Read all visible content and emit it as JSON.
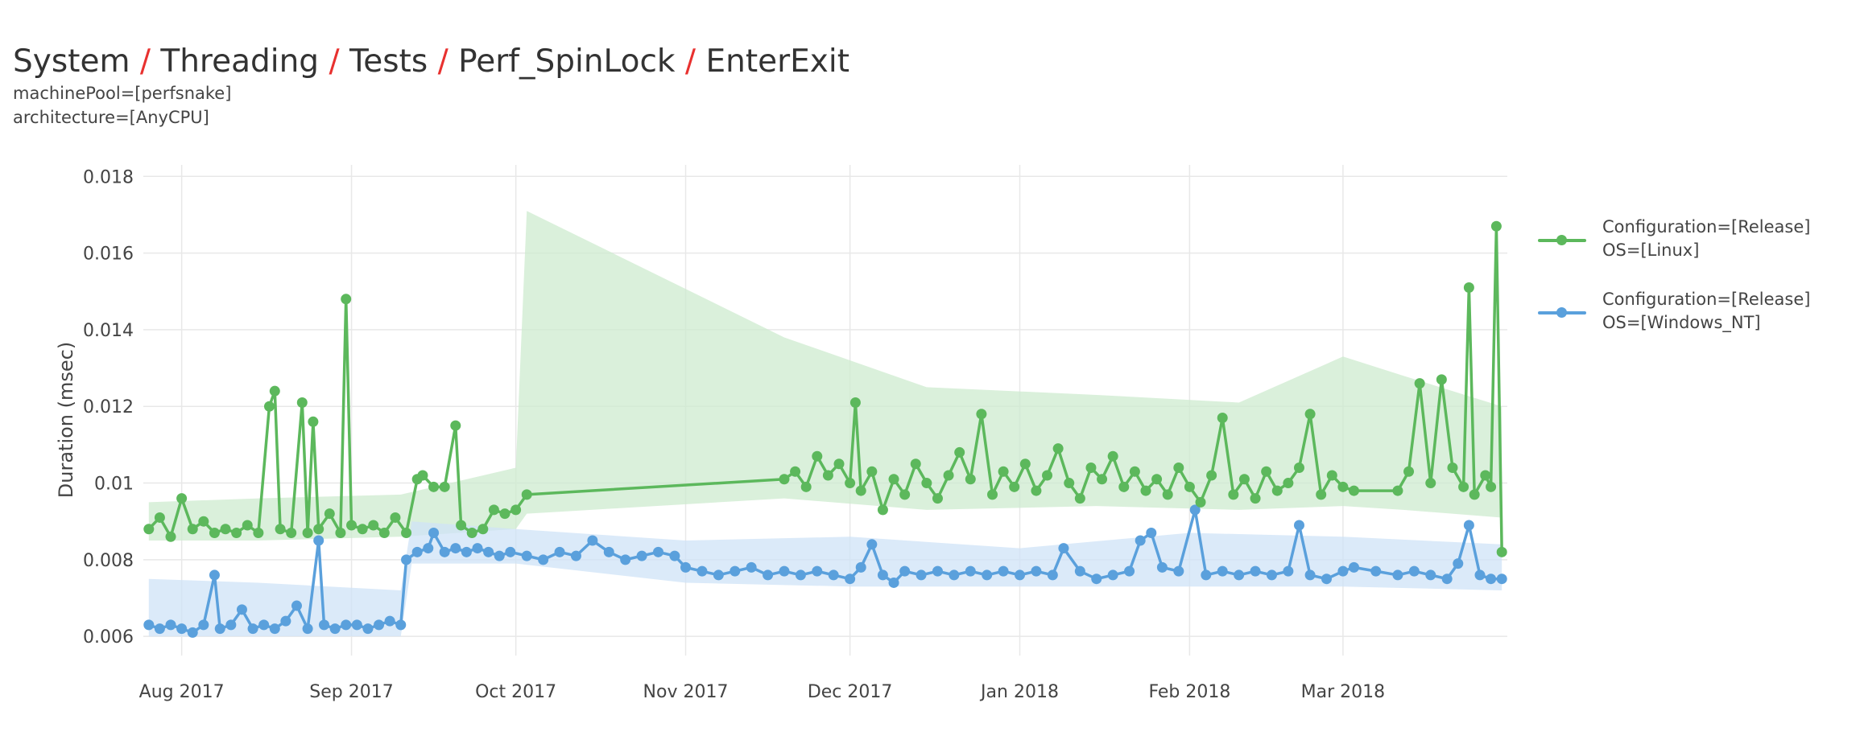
{
  "title": {
    "crumbs": [
      "System",
      "Threading",
      "Tests",
      "Perf_SpinLock",
      "EnterExit"
    ],
    "separator": "/"
  },
  "subtitle": [
    "machinePool=[perfsnake]",
    "architecture=[AnyCPU]"
  ],
  "colors": {
    "linux": "#5cb85c",
    "windows": "#5aa0dc",
    "linux_band": "#cdebcf",
    "windows_band": "#cfe3f7",
    "grid": "#e8e8e8",
    "separator": "#e8312f"
  },
  "chart_data": {
    "type": "line",
    "xlabel": "",
    "ylabel": "Duration (msec)",
    "x_range": [
      "2017-07-25",
      "2018-03-31"
    ],
    "ylim": [
      0.0055,
      0.0183
    ],
    "yticks": [
      0.006,
      0.008,
      0.01,
      0.012,
      0.014,
      0.016,
      0.018
    ],
    "ytick_labels": [
      "0.006",
      "0.008",
      "0.01",
      "0.012",
      "0.014",
      "0.016",
      "0.018"
    ],
    "xticks": [
      "2017-08-01",
      "2017-09-01",
      "2017-10-01",
      "2017-11-01",
      "2017-12-01",
      "2018-01-01",
      "2018-02-01",
      "2018-03-01"
    ],
    "xtick_labels": [
      "Aug 2017",
      "Sep 2017",
      "Oct 2017",
      "Nov 2017",
      "Dec 2017",
      "Jan 2018",
      "Feb 2018",
      "Mar 2018"
    ],
    "grid": true,
    "legend_position": "right",
    "series": [
      {
        "name": "Configuration=[Release]\nOS=[Linux]",
        "color": "#5cb85c",
        "band_color": "#cdebcf",
        "points": [
          [
            "2017-07-26",
            0.0088
          ],
          [
            "2017-07-28",
            0.0091
          ],
          [
            "2017-07-30",
            0.0086
          ],
          [
            "2017-08-01",
            0.0096
          ],
          [
            "2017-08-03",
            0.0088
          ],
          [
            "2017-08-05",
            0.009
          ],
          [
            "2017-08-07",
            0.0087
          ],
          [
            "2017-08-09",
            0.0088
          ],
          [
            "2017-08-11",
            0.0087
          ],
          [
            "2017-08-13",
            0.0089
          ],
          [
            "2017-08-15",
            0.0087
          ],
          [
            "2017-08-17",
            0.012
          ],
          [
            "2017-08-18",
            0.0124
          ],
          [
            "2017-08-19",
            0.0088
          ],
          [
            "2017-08-21",
            0.0087
          ],
          [
            "2017-08-23",
            0.0121
          ],
          [
            "2017-08-24",
            0.0087
          ],
          [
            "2017-08-25",
            0.0116
          ],
          [
            "2017-08-26",
            0.0088
          ],
          [
            "2017-08-28",
            0.0092
          ],
          [
            "2017-08-30",
            0.0087
          ],
          [
            "2017-08-31",
            0.0148
          ],
          [
            "2017-09-01",
            0.0089
          ],
          [
            "2017-09-03",
            0.0088
          ],
          [
            "2017-09-05",
            0.0089
          ],
          [
            "2017-09-07",
            0.0087
          ],
          [
            "2017-09-09",
            0.0091
          ],
          [
            "2017-09-11",
            0.0087
          ],
          [
            "2017-09-13",
            0.0101
          ],
          [
            "2017-09-14",
            0.0102
          ],
          [
            "2017-09-16",
            0.0099
          ],
          [
            "2017-09-18",
            0.0099
          ],
          [
            "2017-09-20",
            0.0115
          ],
          [
            "2017-09-21",
            0.0089
          ],
          [
            "2017-09-23",
            0.0087
          ],
          [
            "2017-09-25",
            0.0088
          ],
          [
            "2017-09-27",
            0.0093
          ],
          [
            "2017-09-29",
            0.0092
          ],
          [
            "2017-10-01",
            0.0093
          ],
          [
            "2017-10-03",
            0.0097
          ],
          [
            "2017-11-19",
            0.0101
          ],
          [
            "2017-11-21",
            0.0103
          ],
          [
            "2017-11-23",
            0.0099
          ],
          [
            "2017-11-25",
            0.0107
          ],
          [
            "2017-11-27",
            0.0102
          ],
          [
            "2017-11-29",
            0.0105
          ],
          [
            "2017-12-01",
            0.01
          ],
          [
            "2017-12-02",
            0.0121
          ],
          [
            "2017-12-03",
            0.0098
          ],
          [
            "2017-12-05",
            0.0103
          ],
          [
            "2017-12-07",
            0.0093
          ],
          [
            "2017-12-09",
            0.0101
          ],
          [
            "2017-12-11",
            0.0097
          ],
          [
            "2017-12-13",
            0.0105
          ],
          [
            "2017-12-15",
            0.01
          ],
          [
            "2017-12-17",
            0.0096
          ],
          [
            "2017-12-19",
            0.0102
          ],
          [
            "2017-12-21",
            0.0108
          ],
          [
            "2017-12-23",
            0.0101
          ],
          [
            "2017-12-25",
            0.0118
          ],
          [
            "2017-12-27",
            0.0097
          ],
          [
            "2017-12-29",
            0.0103
          ],
          [
            "2017-12-31",
            0.0099
          ],
          [
            "2018-01-02",
            0.0105
          ],
          [
            "2018-01-04",
            0.0098
          ],
          [
            "2018-01-06",
            0.0102
          ],
          [
            "2018-01-08",
            0.0109
          ],
          [
            "2018-01-10",
            0.01
          ],
          [
            "2018-01-12",
            0.0096
          ],
          [
            "2018-01-14",
            0.0104
          ],
          [
            "2018-01-16",
            0.0101
          ],
          [
            "2018-01-18",
            0.0107
          ],
          [
            "2018-01-20",
            0.0099
          ],
          [
            "2018-01-22",
            0.0103
          ],
          [
            "2018-01-24",
            0.0098
          ],
          [
            "2018-01-26",
            0.0101
          ],
          [
            "2018-01-28",
            0.0097
          ],
          [
            "2018-01-30",
            0.0104
          ],
          [
            "2018-02-01",
            0.0099
          ],
          [
            "2018-02-03",
            0.0095
          ],
          [
            "2018-02-05",
            0.0102
          ],
          [
            "2018-02-07",
            0.0117
          ],
          [
            "2018-02-09",
            0.0097
          ],
          [
            "2018-02-11",
            0.0101
          ],
          [
            "2018-02-13",
            0.0096
          ],
          [
            "2018-02-15",
            0.0103
          ],
          [
            "2018-02-17",
            0.0098
          ],
          [
            "2018-02-19",
            0.01
          ],
          [
            "2018-02-21",
            0.0104
          ],
          [
            "2018-02-23",
            0.0118
          ],
          [
            "2018-02-25",
            0.0097
          ],
          [
            "2018-02-27",
            0.0102
          ],
          [
            "2018-03-01",
            0.0099
          ],
          [
            "2018-03-03",
            0.0098
          ],
          [
            "2018-03-11",
            0.0098
          ],
          [
            "2018-03-13",
            0.0103
          ],
          [
            "2018-03-15",
            0.0126
          ],
          [
            "2018-03-17",
            0.01
          ],
          [
            "2018-03-19",
            0.0127
          ],
          [
            "2018-03-21",
            0.0104
          ],
          [
            "2018-03-23",
            0.0099
          ],
          [
            "2018-03-24",
            0.0151
          ],
          [
            "2018-03-25",
            0.0097
          ],
          [
            "2018-03-27",
            0.0102
          ],
          [
            "2018-03-28",
            0.0099
          ],
          [
            "2018-03-29",
            0.0167
          ],
          [
            "2018-03-30",
            0.0082
          ]
        ],
        "band_upper": [
          [
            "2017-07-26",
            0.0095
          ],
          [
            "2017-08-15",
            0.0096
          ],
          [
            "2017-09-10",
            0.0097
          ],
          [
            "2017-10-01",
            0.0104
          ],
          [
            "2017-10-03",
            0.0171
          ],
          [
            "2017-11-19",
            0.0138
          ],
          [
            "2017-12-15",
            0.0125
          ],
          [
            "2018-01-15",
            0.0123
          ],
          [
            "2018-02-10",
            0.0121
          ],
          [
            "2018-03-01",
            0.0133
          ],
          [
            "2018-03-12",
            0.0128
          ],
          [
            "2018-03-30",
            0.012
          ]
        ],
        "band_lower": [
          [
            "2017-07-26",
            0.0085
          ],
          [
            "2017-08-15",
            0.0085
          ],
          [
            "2017-09-10",
            0.0086
          ],
          [
            "2017-10-01",
            0.0088
          ],
          [
            "2017-10-03",
            0.0092
          ],
          [
            "2017-11-19",
            0.0096
          ],
          [
            "2017-12-15",
            0.0093
          ],
          [
            "2018-01-15",
            0.0094
          ],
          [
            "2018-02-10",
            0.0093
          ],
          [
            "2018-03-01",
            0.0094
          ],
          [
            "2018-03-12",
            0.0093
          ],
          [
            "2018-03-30",
            0.0091
          ]
        ]
      },
      {
        "name": "Configuration=[Release]\nOS=[Windows_NT]",
        "color": "#5aa0dc",
        "band_color": "#cfe3f7",
        "points": [
          [
            "2017-07-26",
            0.0063
          ],
          [
            "2017-07-28",
            0.0062
          ],
          [
            "2017-07-30",
            0.0063
          ],
          [
            "2017-08-01",
            0.0062
          ],
          [
            "2017-08-03",
            0.0061
          ],
          [
            "2017-08-05",
            0.0063
          ],
          [
            "2017-08-07",
            0.0076
          ],
          [
            "2017-08-08",
            0.0062
          ],
          [
            "2017-08-10",
            0.0063
          ],
          [
            "2017-08-12",
            0.0067
          ],
          [
            "2017-08-14",
            0.0062
          ],
          [
            "2017-08-16",
            0.0063
          ],
          [
            "2017-08-18",
            0.0062
          ],
          [
            "2017-08-20",
            0.0064
          ],
          [
            "2017-08-22",
            0.0068
          ],
          [
            "2017-08-24",
            0.0062
          ],
          [
            "2017-08-26",
            0.0085
          ],
          [
            "2017-08-27",
            0.0063
          ],
          [
            "2017-08-29",
            0.0062
          ],
          [
            "2017-08-31",
            0.0063
          ],
          [
            "2017-09-02",
            0.0063
          ],
          [
            "2017-09-04",
            0.0062
          ],
          [
            "2017-09-06",
            0.0063
          ],
          [
            "2017-09-08",
            0.0064
          ],
          [
            "2017-09-10",
            0.0063
          ],
          [
            "2017-09-11",
            0.008
          ],
          [
            "2017-09-13",
            0.0082
          ],
          [
            "2017-09-15",
            0.0083
          ],
          [
            "2017-09-16",
            0.0087
          ],
          [
            "2017-09-18",
            0.0082
          ],
          [
            "2017-09-20",
            0.0083
          ],
          [
            "2017-09-22",
            0.0082
          ],
          [
            "2017-09-24",
            0.0083
          ],
          [
            "2017-09-26",
            0.0082
          ],
          [
            "2017-09-28",
            0.0081
          ],
          [
            "2017-09-30",
            0.0082
          ],
          [
            "2017-10-03",
            0.0081
          ],
          [
            "2017-10-06",
            0.008
          ],
          [
            "2017-10-09",
            0.0082
          ],
          [
            "2017-10-12",
            0.0081
          ],
          [
            "2017-10-15",
            0.0085
          ],
          [
            "2017-10-18",
            0.0082
          ],
          [
            "2017-10-21",
            0.008
          ],
          [
            "2017-10-24",
            0.0081
          ],
          [
            "2017-10-27",
            0.0082
          ],
          [
            "2017-10-30",
            0.0081
          ],
          [
            "2017-11-01",
            0.0078
          ],
          [
            "2017-11-04",
            0.0077
          ],
          [
            "2017-11-07",
            0.0076
          ],
          [
            "2017-11-10",
            0.0077
          ],
          [
            "2017-11-13",
            0.0078
          ],
          [
            "2017-11-16",
            0.0076
          ],
          [
            "2017-11-19",
            0.0077
          ],
          [
            "2017-11-22",
            0.0076
          ],
          [
            "2017-11-25",
            0.0077
          ],
          [
            "2017-11-28",
            0.0076
          ],
          [
            "2017-12-01",
            0.0075
          ],
          [
            "2017-12-03",
            0.0078
          ],
          [
            "2017-12-05",
            0.0084
          ],
          [
            "2017-12-07",
            0.0076
          ],
          [
            "2017-12-09",
            0.0074
          ],
          [
            "2017-12-11",
            0.0077
          ],
          [
            "2017-12-14",
            0.0076
          ],
          [
            "2017-12-17",
            0.0077
          ],
          [
            "2017-12-20",
            0.0076
          ],
          [
            "2017-12-23",
            0.0077
          ],
          [
            "2017-12-26",
            0.0076
          ],
          [
            "2017-12-29",
            0.0077
          ],
          [
            "2018-01-01",
            0.0076
          ],
          [
            "2018-01-04",
            0.0077
          ],
          [
            "2018-01-07",
            0.0076
          ],
          [
            "2018-01-09",
            0.0083
          ],
          [
            "2018-01-12",
            0.0077
          ],
          [
            "2018-01-15",
            0.0075
          ],
          [
            "2018-01-18",
            0.0076
          ],
          [
            "2018-01-21",
            0.0077
          ],
          [
            "2018-01-23",
            0.0085
          ],
          [
            "2018-01-25",
            0.0087
          ],
          [
            "2018-01-27",
            0.0078
          ],
          [
            "2018-01-30",
            0.0077
          ],
          [
            "2018-02-02",
            0.0093
          ],
          [
            "2018-02-04",
            0.0076
          ],
          [
            "2018-02-07",
            0.0077
          ],
          [
            "2018-02-10",
            0.0076
          ],
          [
            "2018-02-13",
            0.0077
          ],
          [
            "2018-02-16",
            0.0076
          ],
          [
            "2018-02-19",
            0.0077
          ],
          [
            "2018-02-21",
            0.0089
          ],
          [
            "2018-02-23",
            0.0076
          ],
          [
            "2018-02-26",
            0.0075
          ],
          [
            "2018-03-01",
            0.0077
          ],
          [
            "2018-03-03",
            0.0078
          ],
          [
            "2018-03-07",
            0.0077
          ],
          [
            "2018-03-11",
            0.0076
          ],
          [
            "2018-03-14",
            0.0077
          ],
          [
            "2018-03-17",
            0.0076
          ],
          [
            "2018-03-20",
            0.0075
          ],
          [
            "2018-03-22",
            0.0079
          ],
          [
            "2018-03-24",
            0.0089
          ],
          [
            "2018-03-26",
            0.0076
          ],
          [
            "2018-03-28",
            0.0075
          ],
          [
            "2018-03-30",
            0.0075
          ]
        ],
        "band_upper": [
          [
            "2017-07-26",
            0.0075
          ],
          [
            "2017-08-15",
            0.0074
          ],
          [
            "2017-09-10",
            0.0072
          ],
          [
            "2017-09-12",
            0.009
          ],
          [
            "2017-10-01",
            0.0088
          ],
          [
            "2017-11-01",
            0.0085
          ],
          [
            "2017-12-01",
            0.0086
          ],
          [
            "2018-01-01",
            0.0083
          ],
          [
            "2018-02-01",
            0.0087
          ],
          [
            "2018-03-01",
            0.0086
          ],
          [
            "2018-03-30",
            0.0084
          ]
        ],
        "band_lower": [
          [
            "2017-07-26",
            0.006
          ],
          [
            "2017-08-15",
            0.006
          ],
          [
            "2017-09-10",
            0.006
          ],
          [
            "2017-09-12",
            0.0079
          ],
          [
            "2017-10-01",
            0.0079
          ],
          [
            "2017-11-01",
            0.0074
          ],
          [
            "2017-12-01",
            0.0073
          ],
          [
            "2018-01-01",
            0.0073
          ],
          [
            "2018-02-01",
            0.0073
          ],
          [
            "2018-03-01",
            0.0073
          ],
          [
            "2018-03-30",
            0.0072
          ]
        ]
      }
    ]
  }
}
